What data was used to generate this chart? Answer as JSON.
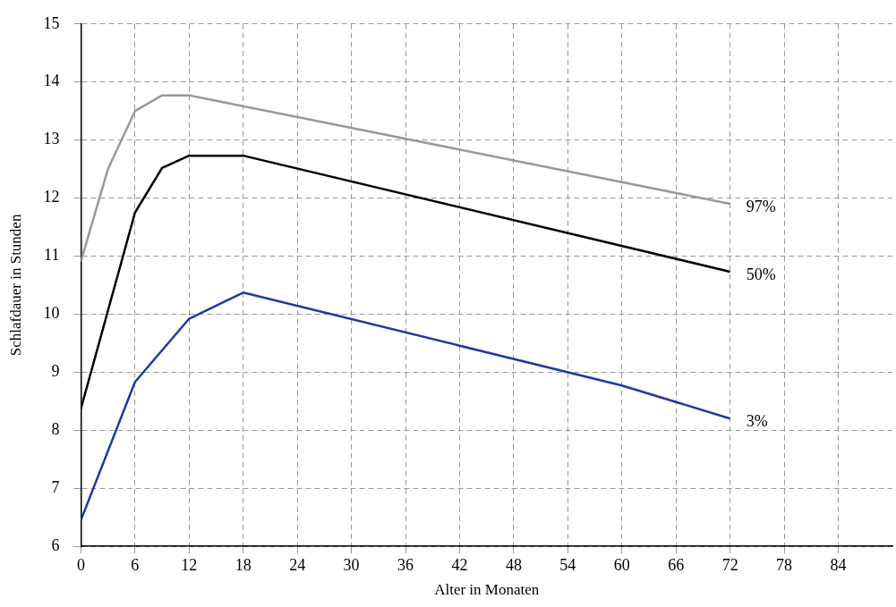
{
  "chart_data": {
    "type": "line",
    "xlabel": "Alter in Monaten",
    "ylabel": "Schlafdauer in Stunden",
    "xlim": [
      0,
      90
    ],
    "xticks": [
      0,
      6,
      12,
      18,
      24,
      30,
      36,
      42,
      48,
      54,
      60,
      66,
      72,
      78,
      84
    ],
    "ylim": [
      6,
      15
    ],
    "yticks": [
      6,
      7,
      8,
      9,
      10,
      11,
      12,
      13,
      14,
      15
    ],
    "grid": true,
    "legend": false,
    "marker": "none",
    "line_style": "solid",
    "series": [
      {
        "name": "97%",
        "color": "#999999",
        "x": [
          0,
          3,
          6,
          9,
          12,
          72
        ],
        "values": [
          10.91,
          12.5,
          13.5,
          13.77,
          13.77,
          11.9
        ]
      },
      {
        "name": "50%",
        "color": "#000000",
        "x": [
          0,
          6,
          9,
          12,
          18,
          72
        ],
        "values": [
          8.37,
          11.75,
          12.52,
          12.73,
          12.73,
          10.73
        ]
      },
      {
        "name": "3%",
        "color": "#1f3a9e",
        "x": [
          0,
          6,
          12,
          18,
          60,
          72
        ],
        "values": [
          6.45,
          8.83,
          9.92,
          10.37,
          8.77,
          8.2
        ]
      }
    ]
  }
}
